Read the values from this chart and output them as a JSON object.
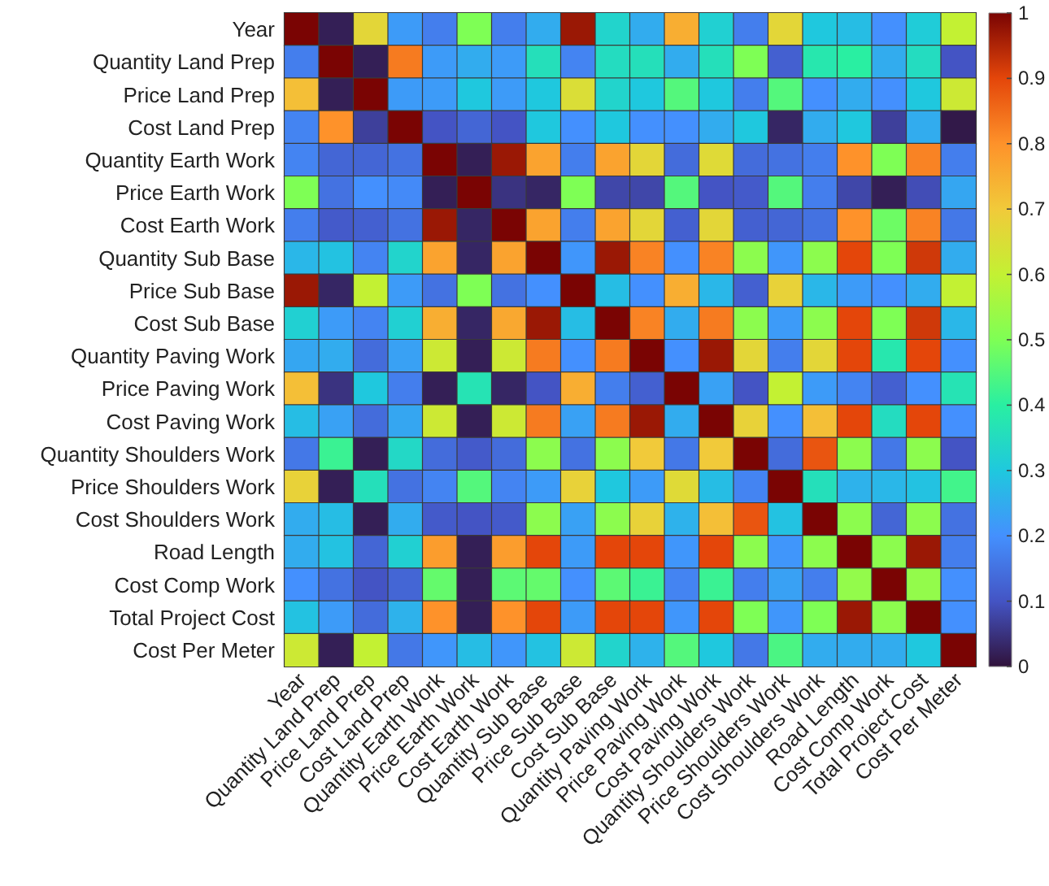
{
  "chart_data": {
    "type": "heatmap",
    "categories": [
      "Year",
      "Quantity Land Prep",
      "Price Land Prep",
      "Cost Land Prep",
      "Quantity Earth Work",
      "Price Earth Work",
      "Cost Earth Work",
      "Quantity Sub Base",
      "Price Sub Base",
      "Cost Sub Base",
      "Quantity Paving Work",
      "Price Paving Work",
      "Cost Paving Work",
      "Quantity Shoulders Work",
      "Price Shoulders Work",
      "Cost Shoulders Work",
      "Road Length",
      "Cost Comp Work",
      "Total Project Cost",
      "Cost Per Meter"
    ],
    "y_categories": [
      "Year",
      "Quantity Land Prep",
      "Price Land Prep",
      "Cost Land Prep",
      "Quantity Earth Work",
      "Price Earth Work",
      "Cost Earth Work",
      "Quantity Sub Base",
      "Price Sub Base",
      "Cost Sub Base",
      "Quantity Paving Work",
      "Price Paving Work",
      "Cost Paving Work",
      "Quantity Shoulders Work",
      "Price Shoulders Work",
      "Cost Shoulders Work",
      "Road Length",
      "Cost Comp Work",
      "Total Project Cost",
      "Cost Per Meter"
    ],
    "cells": [
      [
        1,
        0.02,
        0.67,
        0.22,
        0.17,
        0.5,
        0.17,
        0.25,
        0.97,
        0.33,
        0.25,
        0.75,
        0.32,
        0.17,
        0.67,
        0.3,
        0.28,
        0.2,
        0.31,
        0.6
      ],
      [
        0.17,
        1,
        0.02,
        0.83,
        0.22,
        0.25,
        0.22,
        0.36,
        0.18,
        0.35,
        0.36,
        0.25,
        0.36,
        0.5,
        0.12,
        0.38,
        0.4,
        0.25,
        0.35,
        0.1
      ],
      [
        0.72,
        0.02,
        1,
        0.22,
        0.22,
        0.3,
        0.22,
        0.3,
        0.65,
        0.33,
        0.3,
        0.45,
        0.3,
        0.17,
        0.45,
        0.2,
        0.25,
        0.2,
        0.3,
        0.62
      ],
      [
        0.18,
        0.8,
        0.07,
        1,
        0.1,
        0.13,
        0.1,
        0.3,
        0.2,
        0.3,
        0.2,
        0.2,
        0.25,
        0.3,
        0.03,
        0.25,
        0.3,
        0.07,
        0.25,
        0.01
      ],
      [
        0.18,
        0.13,
        0.13,
        0.15,
        1,
        0.02,
        0.97,
        0.77,
        0.17,
        0.77,
        0.67,
        0.14,
        0.66,
        0.14,
        0.15,
        0.17,
        0.8,
        0.5,
        0.82,
        0.17
      ],
      [
        0.5,
        0.15,
        0.2,
        0.19,
        0.02,
        1,
        0.05,
        0.03,
        0.5,
        0.08,
        0.08,
        0.45,
        0.1,
        0.11,
        0.45,
        0.17,
        0.08,
        0.02,
        0.09,
        0.24
      ],
      [
        0.17,
        0.11,
        0.12,
        0.15,
        0.97,
        0.03,
        1,
        0.77,
        0.17,
        0.77,
        0.67,
        0.12,
        0.67,
        0.12,
        0.13,
        0.15,
        0.8,
        0.48,
        0.82,
        0.16
      ],
      [
        0.27,
        0.29,
        0.18,
        0.33,
        0.77,
        0.03,
        0.77,
        1,
        0.21,
        0.97,
        0.82,
        0.2,
        0.82,
        0.52,
        0.21,
        0.52,
        0.9,
        0.5,
        0.92,
        0.25
      ],
      [
        0.97,
        0.03,
        0.6,
        0.22,
        0.15,
        0.5,
        0.15,
        0.2,
        1,
        0.28,
        0.2,
        0.75,
        0.27,
        0.12,
        0.68,
        0.27,
        0.22,
        0.2,
        0.25,
        0.6
      ],
      [
        0.32,
        0.22,
        0.18,
        0.32,
        0.75,
        0.03,
        0.76,
        0.97,
        0.28,
        1,
        0.82,
        0.25,
        0.83,
        0.52,
        0.22,
        0.52,
        0.9,
        0.5,
        0.92,
        0.27
      ],
      [
        0.24,
        0.25,
        0.14,
        0.23,
        0.62,
        0.02,
        0.62,
        0.83,
        0.2,
        0.83,
        1,
        0.2,
        0.97,
        0.67,
        0.17,
        0.67,
        0.9,
        0.38,
        0.9,
        0.2
      ],
      [
        0.72,
        0.05,
        0.3,
        0.17,
        0.02,
        0.37,
        0.03,
        0.1,
        0.75,
        0.17,
        0.12,
        1,
        0.23,
        0.1,
        0.6,
        0.22,
        0.18,
        0.12,
        0.2,
        0.37
      ],
      [
        0.28,
        0.23,
        0.14,
        0.24,
        0.62,
        0.02,
        0.62,
        0.83,
        0.23,
        0.83,
        0.97,
        0.25,
        1,
        0.68,
        0.2,
        0.72,
        0.9,
        0.35,
        0.9,
        0.2
      ],
      [
        0.16,
        0.42,
        0.02,
        0.34,
        0.14,
        0.11,
        0.14,
        0.52,
        0.15,
        0.52,
        0.7,
        0.16,
        0.7,
        1,
        0.14,
        0.88,
        0.52,
        0.16,
        0.52,
        0.1
      ],
      [
        0.68,
        0.02,
        0.36,
        0.15,
        0.18,
        0.45,
        0.18,
        0.22,
        0.68,
        0.3,
        0.22,
        0.66,
        0.28,
        0.18,
        1,
        0.36,
        0.26,
        0.27,
        0.29,
        0.43
      ],
      [
        0.25,
        0.28,
        0.02,
        0.25,
        0.11,
        0.1,
        0.11,
        0.52,
        0.23,
        0.52,
        0.68,
        0.26,
        0.72,
        0.88,
        0.29,
        1,
        0.52,
        0.13,
        0.52,
        0.15
      ],
      [
        0.25,
        0.29,
        0.13,
        0.32,
        0.78,
        0.02,
        0.78,
        0.9,
        0.22,
        0.9,
        0.9,
        0.21,
        0.9,
        0.52,
        0.21,
        0.52,
        1,
        0.52,
        0.97,
        0.17
      ],
      [
        0.2,
        0.15,
        0.1,
        0.13,
        0.47,
        0.02,
        0.46,
        0.47,
        0.2,
        0.46,
        0.42,
        0.18,
        0.42,
        0.17,
        0.23,
        0.17,
        0.53,
        1,
        0.53,
        0.2
      ],
      [
        0.29,
        0.22,
        0.14,
        0.26,
        0.8,
        0.02,
        0.8,
        0.9,
        0.22,
        0.9,
        0.9,
        0.21,
        0.9,
        0.5,
        0.21,
        0.5,
        0.97,
        0.52,
        1,
        0.2
      ],
      [
        0.62,
        0.02,
        0.6,
        0.16,
        0.21,
        0.28,
        0.21,
        0.29,
        0.62,
        0.33,
        0.26,
        0.45,
        0.3,
        0.16,
        0.44,
        0.25,
        0.25,
        0.25,
        0.3,
        1
      ]
    ],
    "clim": [
      0,
      1
    ],
    "cticks": [
      0,
      0.1,
      0.2,
      0.3,
      0.4,
      0.5,
      0.6,
      0.7,
      0.8,
      0.9,
      1
    ]
  }
}
